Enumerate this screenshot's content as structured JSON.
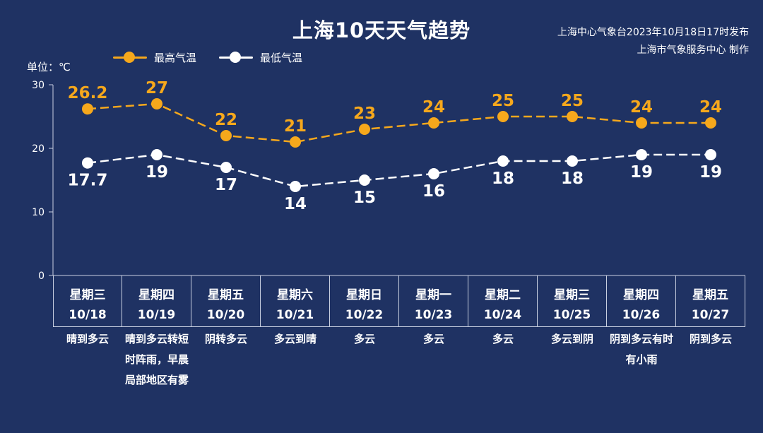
{
  "header": {
    "title": "上海10天天气趋势",
    "publisher_line1": "上海中心气象台2023年10月18日17时发布",
    "publisher_line2": "上海市气象服务中心 制作",
    "unit_label": "单位：℃"
  },
  "chart_data": {
    "type": "line",
    "title": "上海10天天气趋势",
    "ylabel": "单位：℃",
    "ylim": [
      0,
      30
    ],
    "yticks": [
      "0",
      "10",
      "20",
      "30"
    ],
    "legend_position": "top-left",
    "categories": [
      "10/18",
      "10/19",
      "10/20",
      "10/21",
      "10/22",
      "10/23",
      "10/24",
      "10/25",
      "10/26",
      "10/27"
    ],
    "series": [
      {
        "name": "最高气温",
        "color": "#f6a81c",
        "line_style": "dashed",
        "values": [
          26.2,
          27,
          22,
          21,
          23,
          24,
          25,
          25,
          24,
          24
        ],
        "labels": [
          "26.2",
          "27",
          "22",
          "21",
          "23",
          "24",
          "25",
          "25",
          "24",
          "24"
        ]
      },
      {
        "name": "最低气温",
        "color": "#ffffff",
        "line_style": "dashed",
        "values": [
          17.7,
          19,
          17,
          14,
          15,
          16,
          18,
          18,
          19,
          19
        ],
        "labels": [
          "17.7",
          "19",
          "17",
          "14",
          "15",
          "16",
          "18",
          "18",
          "19",
          "19"
        ]
      }
    ]
  },
  "days": [
    {
      "weekday": "星期三",
      "date": "10/18",
      "condition": "晴到多云"
    },
    {
      "weekday": "星期四",
      "date": "10/19",
      "condition": "晴到多云转短时阵雨，早晨局部地区有雾"
    },
    {
      "weekday": "星期五",
      "date": "10/20",
      "condition": "阴转多云"
    },
    {
      "weekday": "星期六",
      "date": "10/21",
      "condition": "多云到晴"
    },
    {
      "weekday": "星期日",
      "date": "10/22",
      "condition": "多云"
    },
    {
      "weekday": "星期一",
      "date": "10/23",
      "condition": "多云"
    },
    {
      "weekday": "星期二",
      "date": "10/24",
      "condition": "多云"
    },
    {
      "weekday": "星期三",
      "date": "10/25",
      "condition": "多云到阴"
    },
    {
      "weekday": "星期四",
      "date": "10/26",
      "condition": "阴到多云有时有小雨"
    },
    {
      "weekday": "星期五",
      "date": "10/27",
      "condition": "阴到多云"
    }
  ]
}
